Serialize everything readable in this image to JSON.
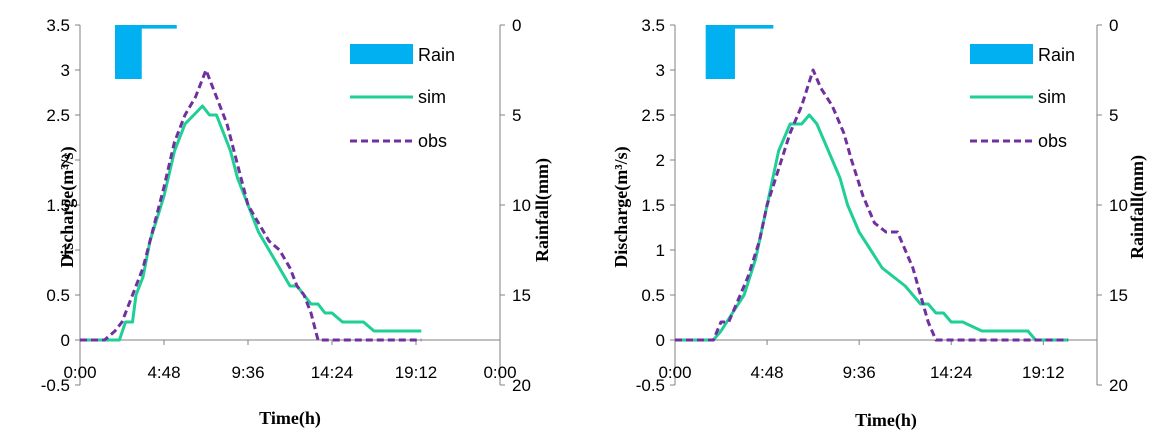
{
  "colors": {
    "rain": "#00b0f0",
    "sim": "#1fcf96",
    "obs": "#7030a0",
    "axis": "#808080",
    "text": "#000000"
  },
  "chart_data": [
    {
      "type": "line",
      "title": "",
      "xlabel": "Time(h)",
      "ylabel": "Discharge(m³/s)",
      "y2label": "Rainfall(mm)",
      "xlim_hours": [
        0,
        24
      ],
      "ylim": [
        -0.5,
        3.5
      ],
      "y2lim": [
        0,
        20
      ],
      "y2_inverted": true,
      "x_ticks": [
        "0:00",
        "4:48",
        "9:36",
        "14:24",
        "19:12",
        "0:00"
      ],
      "y_ticks": [
        "-0.5",
        "0",
        "0.5",
        "1",
        "1.5",
        "2",
        "2.5",
        "3",
        "3.5"
      ],
      "y2_ticks": [
        "0",
        "5",
        "10",
        "15",
        "20"
      ],
      "legend": {
        "position": "top-right",
        "entries": [
          "Rain",
          "sim",
          "obs"
        ]
      },
      "grid": false,
      "series": [
        {
          "name": "Rain",
          "kind": "bar",
          "x": [
            "2:00",
            "2:30",
            "3:00",
            "3:30",
            "4:00",
            "4:30",
            "5:00"
          ],
          "values": [
            3,
            3,
            3,
            0.2,
            0.2,
            0.2,
            0.2
          ]
        },
        {
          "name": "sim",
          "kind": "line",
          "x": [
            "0:00",
            "1:24",
            "2:15",
            "2:36",
            "3:00",
            "3:12",
            "3:36",
            "4:00",
            "4:48",
            "5:24",
            "6:00",
            "6:30",
            "7:00",
            "7:24",
            "7:48",
            "8:12",
            "8:36",
            "9:00",
            "9:36",
            "10:12",
            "10:48",
            "11:24",
            "12:00",
            "12:24",
            "12:48",
            "13:12",
            "13:36",
            "14:00",
            "14:24",
            "15:00",
            "15:36",
            "16:12",
            "16:48",
            "17:24",
            "18:00",
            "18:48",
            "19:30"
          ],
          "values": [
            0,
            0,
            0,
            0.2,
            0.2,
            0.5,
            0.7,
            1.1,
            1.6,
            2.1,
            2.4,
            2.5,
            2.6,
            2.5,
            2.5,
            2.3,
            2.1,
            1.8,
            1.5,
            1.2,
            1.0,
            0.8,
            0.6,
            0.6,
            0.5,
            0.4,
            0.4,
            0.3,
            0.3,
            0.2,
            0.2,
            0.2,
            0.1,
            0.1,
            0.1,
            0.1,
            0.1
          ]
        },
        {
          "name": "obs",
          "kind": "line",
          "dashed": true,
          "x": [
            "0:00",
            "1:24",
            "2:00",
            "2:24",
            "3:00",
            "3:36",
            "4:00",
            "4:48",
            "5:24",
            "6:00",
            "6:36",
            "7:12",
            "7:36",
            "8:00",
            "8:24",
            "8:48",
            "9:12",
            "9:36",
            "10:12",
            "10:48",
            "11:24",
            "12:00",
            "12:24",
            "12:48",
            "13:12",
            "13:36",
            "14:00",
            "14:24",
            "15:00",
            "16:00",
            "17:00",
            "18:00",
            "19:00",
            "19:30"
          ],
          "values": [
            0,
            0,
            0.1,
            0.2,
            0.5,
            0.8,
            1.1,
            1.7,
            2.2,
            2.5,
            2.7,
            3.0,
            2.8,
            2.6,
            2.4,
            2.1,
            1.8,
            1.5,
            1.3,
            1.1,
            1.0,
            0.8,
            0.6,
            0.5,
            0.3,
            0,
            0,
            0,
            0,
            0,
            0,
            0,
            0,
            0
          ]
        }
      ]
    },
    {
      "type": "line",
      "title": "",
      "xlabel": "Time(h)",
      "ylabel": "Discharge(m³/s)",
      "y2label": "Rainfall(mm)",
      "xlim_hours": [
        0,
        22
      ],
      "ylim": [
        -0.5,
        3.5
      ],
      "y2lim": [
        0,
        20
      ],
      "y2_inverted": true,
      "x_ticks": [
        "0:00",
        "4:48",
        "9:36",
        "14:24",
        "19:12"
      ],
      "y_ticks": [
        "-0.5",
        "0",
        "0.5",
        "1",
        "1.5",
        "2",
        "2.5",
        "3",
        "3.5"
      ],
      "y2_ticks": [
        "0",
        "5",
        "10",
        "15",
        "20"
      ],
      "legend": {
        "position": "top-right",
        "entries": [
          "Rain",
          "sim",
          "obs"
        ]
      },
      "grid": false,
      "series": [
        {
          "name": "Rain",
          "kind": "bar",
          "x": [
            "1:36",
            "2:06",
            "2:36",
            "3:06",
            "3:36",
            "4:06",
            "4:36"
          ],
          "values": [
            3,
            3,
            3,
            0.2,
            0.2,
            0.2,
            0.2
          ]
        },
        {
          "name": "sim",
          "kind": "line",
          "x": [
            "0:00",
            "1:12",
            "2:00",
            "2:24",
            "3:00",
            "3:36",
            "4:12",
            "4:48",
            "5:24",
            "6:00",
            "6:36",
            "7:00",
            "7:24",
            "7:48",
            "8:12",
            "8:36",
            "9:00",
            "9:36",
            "10:12",
            "10:48",
            "11:24",
            "12:00",
            "12:24",
            "12:48",
            "13:12",
            "13:36",
            "14:00",
            "14:24",
            "15:00",
            "16:00",
            "17:00",
            "18:00",
            "18:24",
            "18:48",
            "19:30",
            "20:30"
          ],
          "values": [
            0,
            0,
            0,
            0.1,
            0.3,
            0.5,
            0.9,
            1.5,
            2.1,
            2.4,
            2.4,
            2.5,
            2.4,
            2.2,
            2.0,
            1.8,
            1.5,
            1.2,
            1.0,
            0.8,
            0.7,
            0.6,
            0.5,
            0.4,
            0.4,
            0.3,
            0.3,
            0.2,
            0.2,
            0.1,
            0.1,
            0.1,
            0.1,
            0,
            0,
            0
          ]
        },
        {
          "name": "obs",
          "kind": "line",
          "dashed": true,
          "x": [
            "0:00",
            "1:12",
            "2:00",
            "2:24",
            "2:48",
            "3:12",
            "3:48",
            "4:24",
            "4:48",
            "5:24",
            "6:00",
            "6:36",
            "7:12",
            "7:36",
            "8:12",
            "8:48",
            "9:12",
            "9:48",
            "10:24",
            "11:00",
            "11:36",
            "12:00",
            "12:24",
            "12:48",
            "13:12",
            "13:36",
            "14:00",
            "15:00",
            "16:00",
            "17:00",
            "18:00",
            "19:00",
            "20:00",
            "20:30"
          ],
          "values": [
            0,
            0,
            0,
            0.2,
            0.2,
            0.4,
            0.7,
            1.1,
            1.5,
            1.9,
            2.3,
            2.6,
            3.0,
            2.8,
            2.6,
            2.3,
            2.0,
            1.6,
            1.3,
            1.2,
            1.2,
            1.0,
            0.8,
            0.5,
            0.2,
            0,
            0,
            0,
            0,
            0,
            0,
            0,
            0,
            0
          ]
        }
      ]
    }
  ]
}
